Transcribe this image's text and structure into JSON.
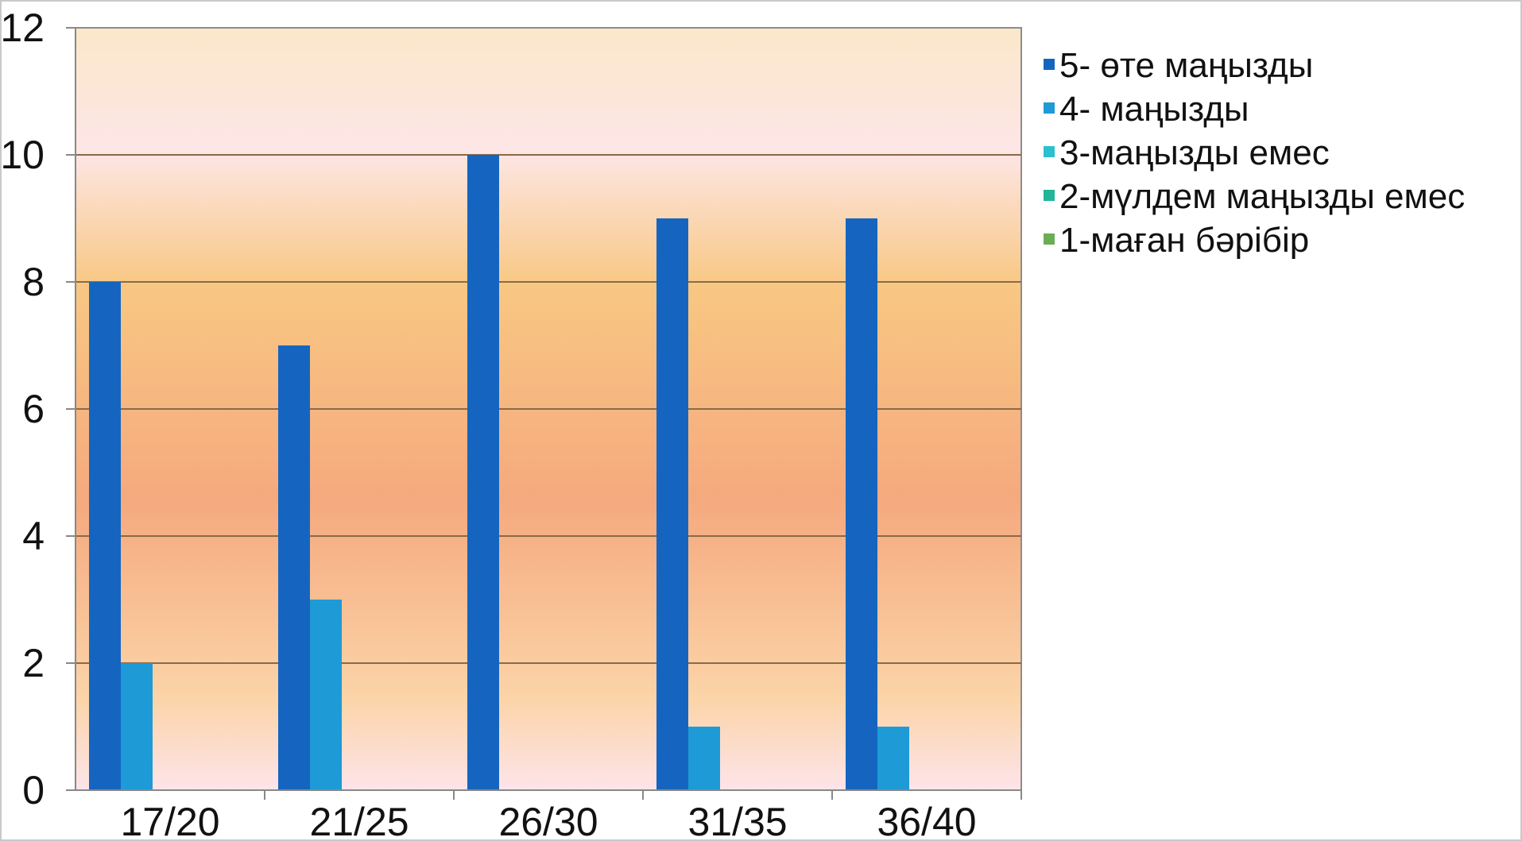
{
  "chart_data": {
    "type": "bar",
    "title": "",
    "xlabel": "",
    "ylabel": "",
    "ylim": [
      0,
      12
    ],
    "yticks": [
      0,
      2,
      4,
      6,
      8,
      10,
      12
    ],
    "grid": true,
    "legend_position": "right",
    "categories": [
      "17/20",
      "21/25",
      "26/30",
      "31/35",
      "36/40"
    ],
    "series": [
      {
        "name": "5- өте маңызды",
        "color": "#1565c0",
        "values": [
          8,
          7,
          10,
          9,
          9
        ]
      },
      {
        "name": "4- маңызды",
        "color": "#1e9ad6",
        "values": [
          2,
          3,
          0,
          1,
          1
        ]
      },
      {
        "name": "3-маңызды емес",
        "color": "#2bc0cf",
        "values": [
          0,
          0,
          0,
          0,
          0
        ]
      },
      {
        "name": "2-мүлдем маңызды емес",
        "color": "#22b59a",
        "values": [
          0,
          0,
          0,
          0,
          0
        ]
      },
      {
        "name": "1-маған бәрібір",
        "color": "#6aad55",
        "values": [
          0,
          0,
          0,
          0,
          0
        ]
      }
    ]
  }
}
